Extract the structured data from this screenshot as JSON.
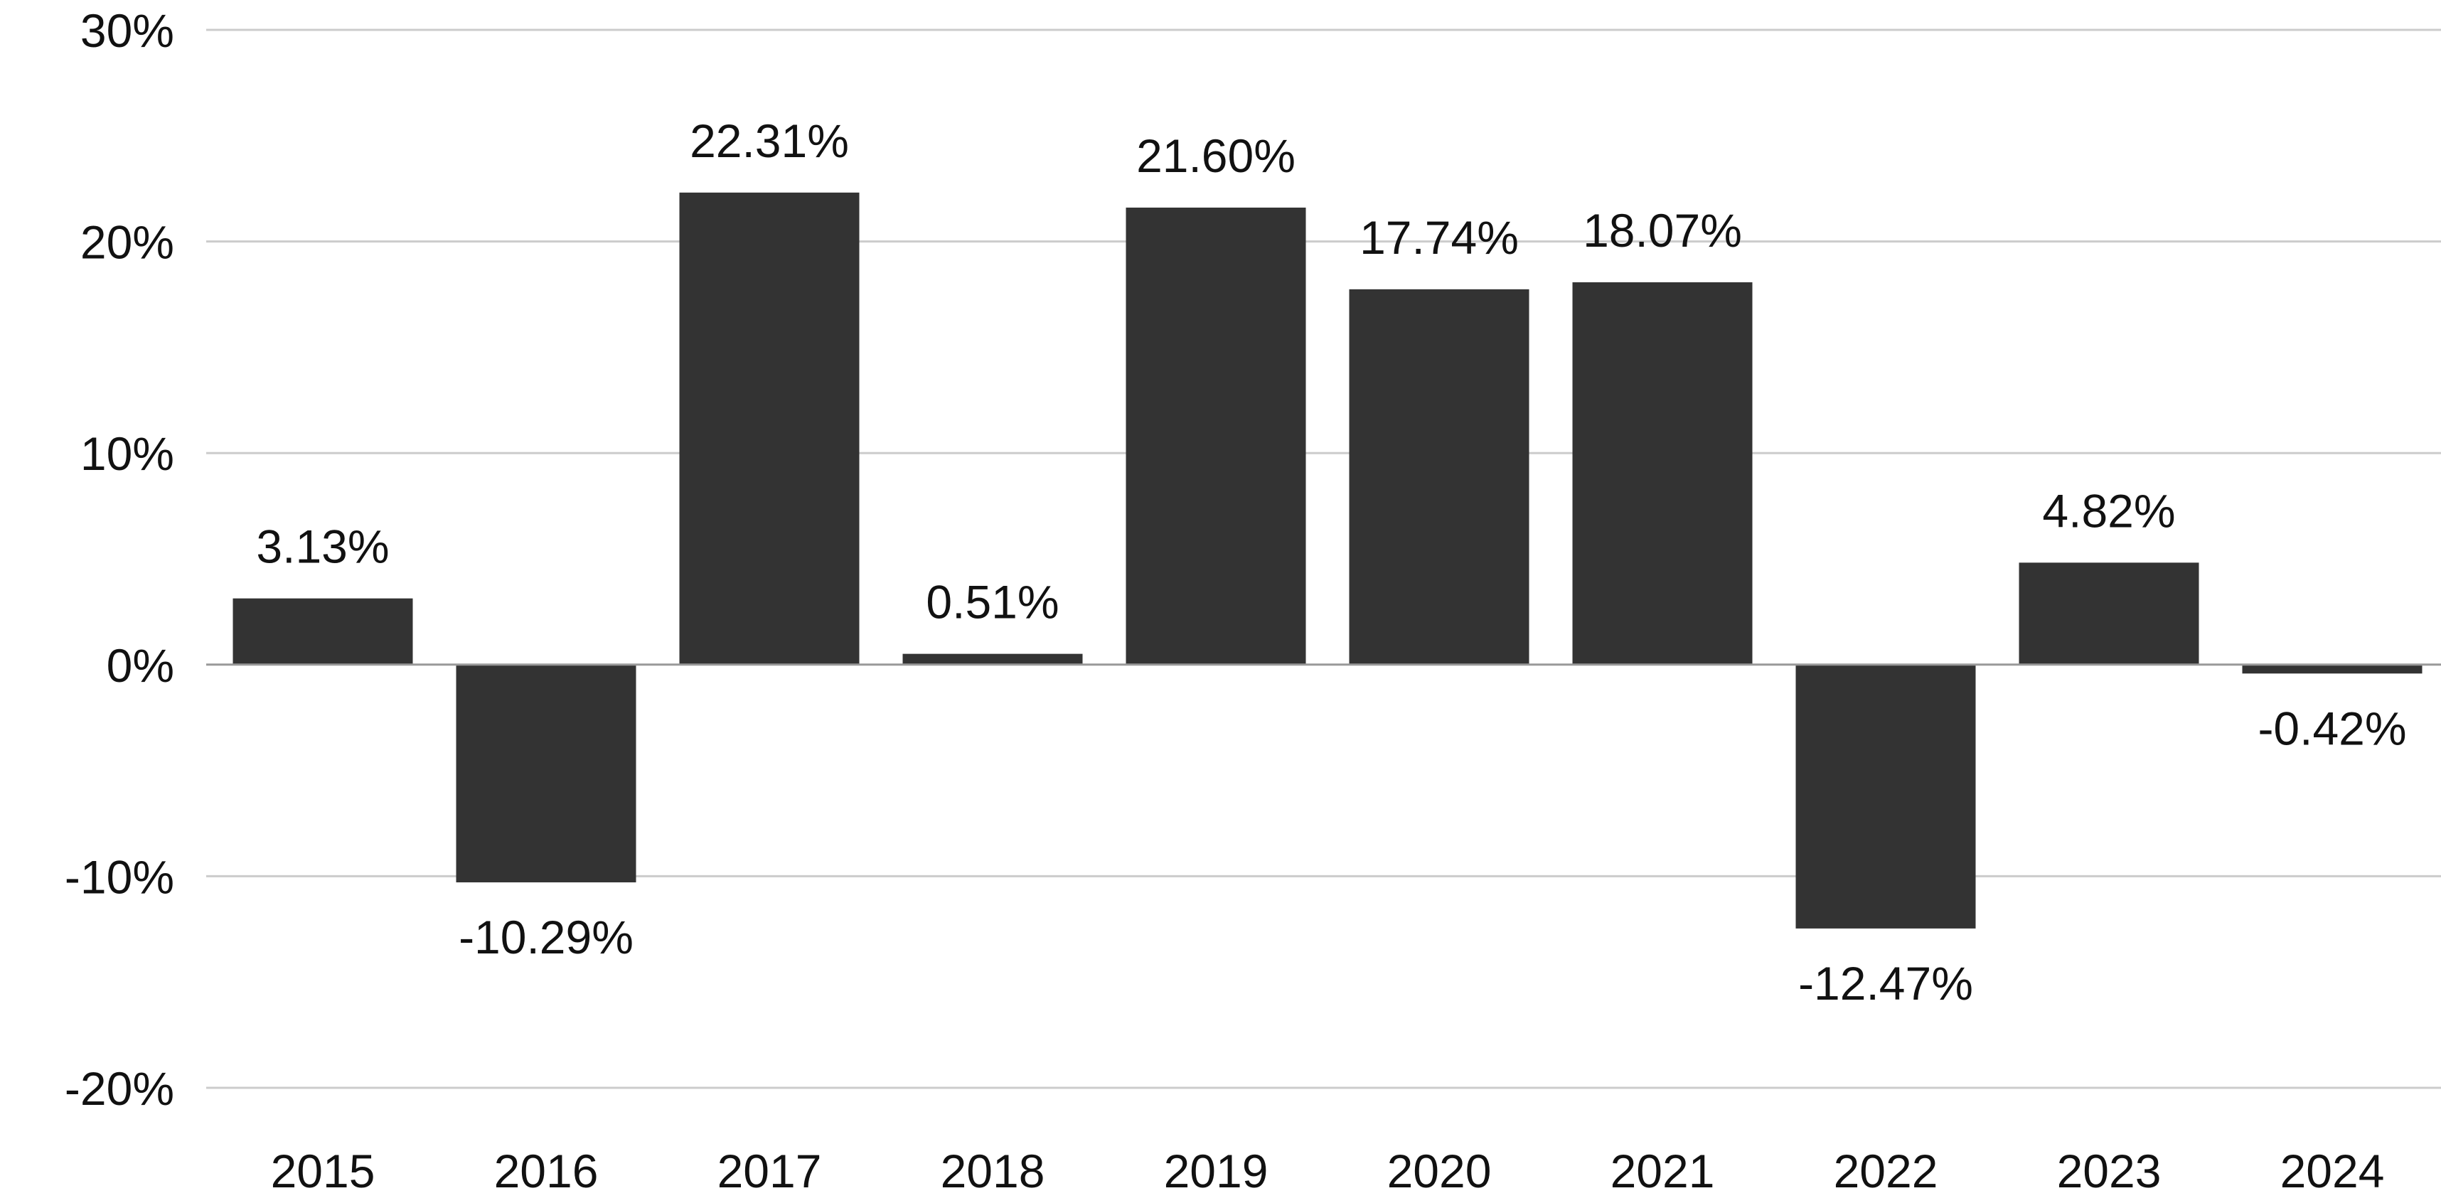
{
  "chart_data": {
    "type": "bar",
    "title": "",
    "xlabel": "",
    "ylabel": "",
    "categories": [
      "2015",
      "2016",
      "2017",
      "2018",
      "2019",
      "2020",
      "2021",
      "2022",
      "2023",
      "2024"
    ],
    "values": [
      3.13,
      -10.29,
      22.31,
      0.51,
      21.6,
      17.74,
      18.07,
      -12.47,
      4.82,
      -0.42
    ],
    "value_labels": [
      "3.13%",
      "-10.29%",
      "22.31%",
      "0.51%",
      "21.60%",
      "17.74%",
      "18.07%",
      "-12.47%",
      "4.82%",
      "-0.42%"
    ],
    "ylim": [
      -20,
      30
    ],
    "yticks": [
      30,
      20,
      10,
      0,
      -10,
      -20
    ],
    "ytick_labels": [
      "30%",
      "20%",
      "10%",
      "0%",
      "-10%",
      "-20%"
    ],
    "grid": true,
    "legend": "none",
    "colors": {
      "bar": "#333333",
      "grid": "#cccccc",
      "zero_line": "#999999",
      "text": "#111111"
    }
  }
}
